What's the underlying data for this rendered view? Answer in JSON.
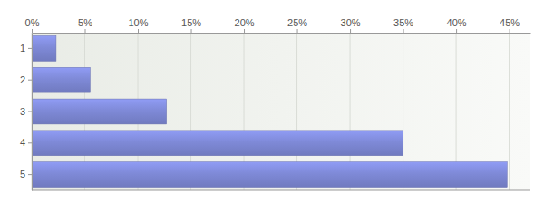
{
  "chart_data": {
    "type": "bar",
    "orientation": "horizontal",
    "categories": [
      "1",
      "2",
      "3",
      "4",
      "5"
    ],
    "values": [
      2.3,
      5.5,
      12.7,
      35.0,
      44.8
    ],
    "color": "#7f8ad8",
    "xlim": [
      0,
      47
    ],
    "xticks": [
      {
        "value": 0,
        "label": "0%"
      },
      {
        "value": 5,
        "label": "5%"
      },
      {
        "value": 10,
        "label": "10%"
      },
      {
        "value": 15,
        "label": "15%"
      },
      {
        "value": 20,
        "label": "20%"
      },
      {
        "value": 25,
        "label": "25%"
      },
      {
        "value": 30,
        "label": "30%"
      },
      {
        "value": 35,
        "label": "35%"
      },
      {
        "value": 40,
        "label": "40%"
      },
      {
        "value": 45,
        "label": "45%"
      }
    ],
    "grid": true
  }
}
